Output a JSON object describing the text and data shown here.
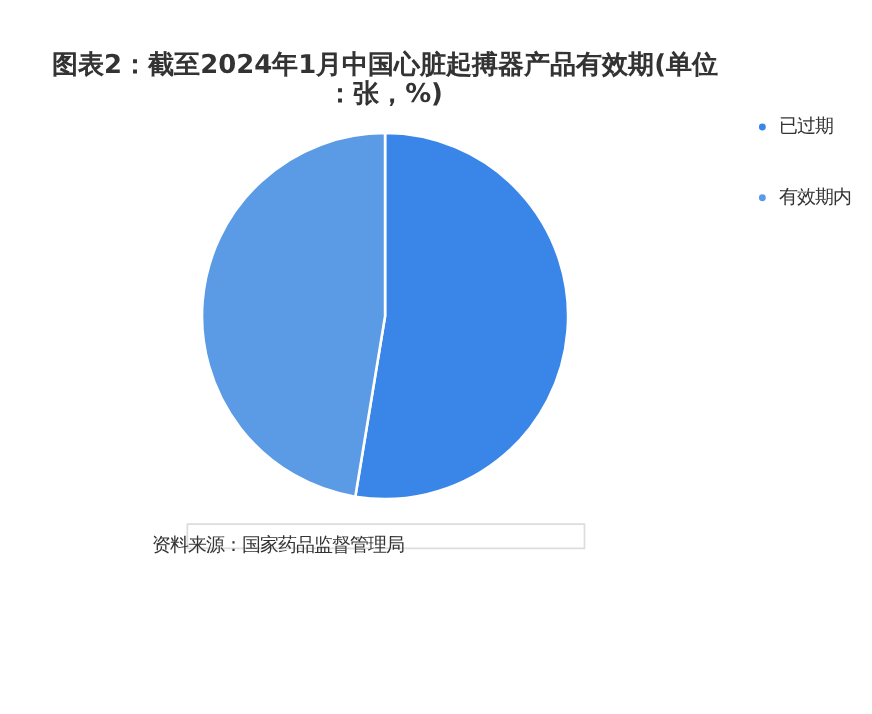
{
  "chart_data": {
    "type": "pie",
    "title": "图表2：截至2024年1月中国心脏起搏器产品有效期(单位：张，%)",
    "categories": [
      "已过期",
      "有效期内"
    ],
    "values": [
      52.6,
      47.4
    ],
    "colors": [
      "#3a86e8",
      "#5b9be6"
    ],
    "legend": "right",
    "annotations": [
      "资料来源：国家药品监督管理局"
    ]
  }
}
